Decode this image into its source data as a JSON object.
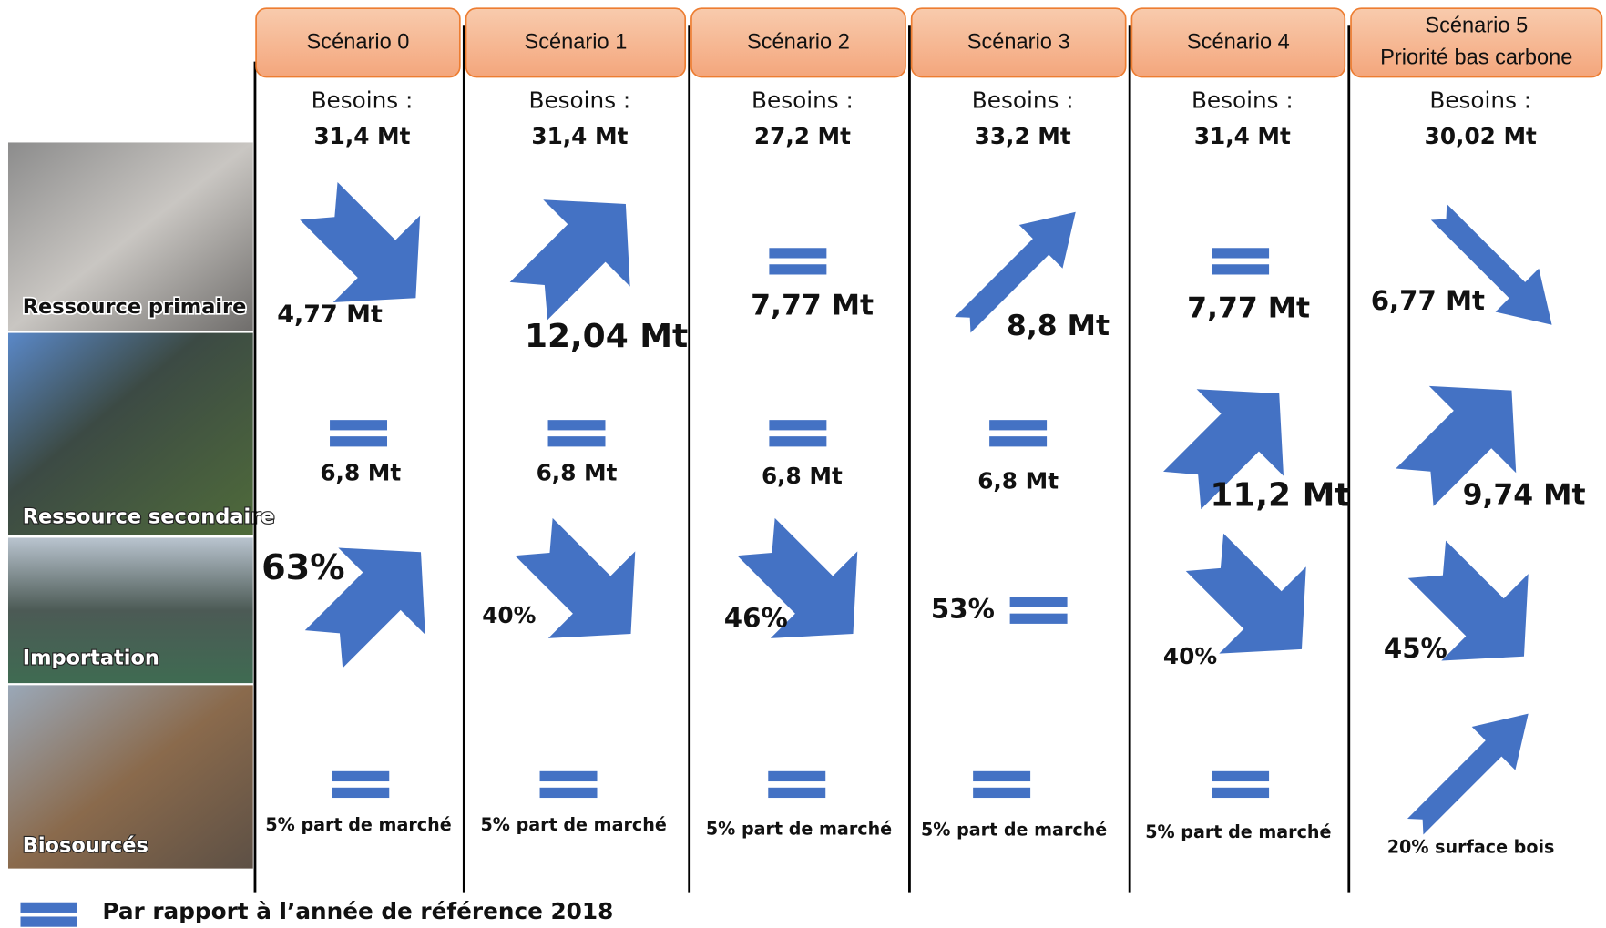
{
  "rows": [
    {
      "label": "Ressource primaire"
    },
    {
      "label": "Ressource secondaire"
    },
    {
      "label": "Importation"
    },
    {
      "label": "Biosourcés"
    }
  ],
  "scenarios": [
    {
      "title": [
        "Scénario 0"
      ],
      "needs_label": "Besoins :",
      "needs": "31,4 Mt",
      "cells": [
        "4,77 Mt",
        "6,8 Mt",
        "63%",
        "5% part de marché"
      ]
    },
    {
      "title": [
        "Scénario 1"
      ],
      "needs_label": "Besoins :",
      "needs": "31,4 Mt",
      "cells": [
        "12,04 Mt",
        "6,8 Mt",
        "40%",
        "5% part de marché"
      ]
    },
    {
      "title": [
        "Scénario 2"
      ],
      "needs_label": "Besoins :",
      "needs": "27,2 Mt",
      "cells": [
        "7,77 Mt",
        "6,8 Mt",
        "46%",
        "5% part de marché"
      ]
    },
    {
      "title": [
        "Scénario 3"
      ],
      "needs_label": "Besoins :",
      "needs": "33,2 Mt",
      "cells": [
        "8,8 Mt",
        "6,8 Mt",
        "53%",
        "5% part de marché"
      ]
    },
    {
      "title": [
        "Scénario 4"
      ],
      "needs_label": "Besoins :",
      "needs": "31,4 Mt",
      "cells": [
        "7,77 Mt",
        "11,2 Mt",
        "40%",
        "5% part de marché"
      ]
    },
    {
      "title": [
        "Scénario 5",
        "Priorité bas carbone"
      ],
      "needs_label": "Besoins :",
      "needs": "30,02 Mt",
      "cells": [
        "6,77 Mt",
        "9,74 Mt",
        "45%",
        "20% surface bois"
      ]
    }
  ],
  "legend": "Par rapport à l’année de référence 2018"
}
